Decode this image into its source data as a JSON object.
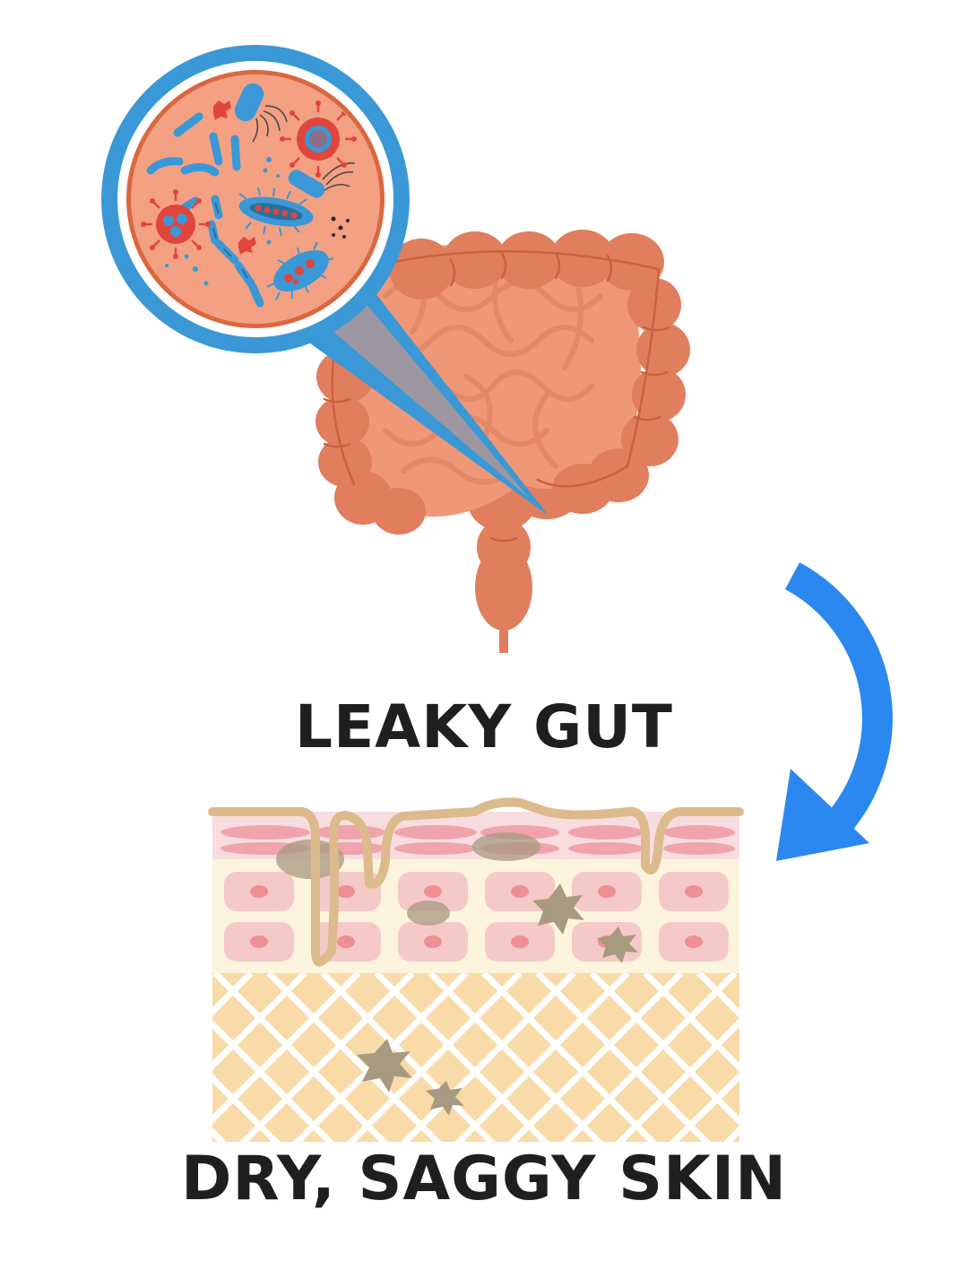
{
  "labels": {
    "top": "LEAKY GUT",
    "bottom": "DRY, SAGGY SKIN"
  },
  "colors": {
    "intestine_dark": "#e07e5e",
    "intestine_light": "#ee9878",
    "intestine_line": "#c8623f",
    "magnifier_ring": "#3a98d6",
    "magnifier_fill": "#f3a083",
    "bacteria_blue": "#3a98d6",
    "virus_red": "#e0463c",
    "arrow_blue": "#2b88ef",
    "skin_outline": "#ddba8c",
    "skin_top_layer": "#f8dde0",
    "skin_mid_layer": "#fcf4dc",
    "cell_pink": "#f6c9c9",
    "nucleus": "#ee8f94",
    "dermis": "#f8dba8",
    "spot": "#a89a80"
  },
  "icons": [
    "intestine-icon",
    "magnifier-icon",
    "bacteria-icon",
    "virus-icon",
    "curved-arrow-icon",
    "skin-cross-section-icon",
    "damage-spot-icon"
  ]
}
